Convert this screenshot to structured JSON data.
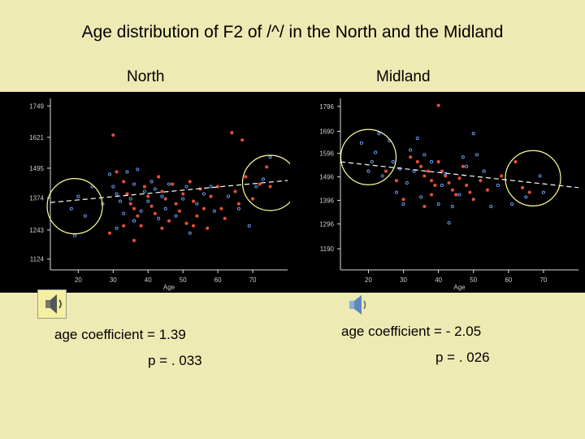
{
  "title": "Age distribution of F2 of /^/ in the North and the Midland",
  "north_label": "North",
  "midland_label": "Midland",
  "north_coefficient": "age  coefficient = 1.39",
  "north_p": "p = . 033",
  "midland_coefficient": "age  coefficient = - 2.05",
  "midland_p": "p =  . 026",
  "colors": {
    "background": "#eeeab3",
    "plot_bg": "#000000",
    "male_points": "#e05038",
    "female_points": "#70a8ff",
    "circle": "#ffff99",
    "trend": "#ffffff"
  },
  "icons": [
    "speaker-icon",
    "speaker-icon"
  ],
  "chart_data": [
    {
      "type": "scatter",
      "title": "North",
      "xlabel": "Age",
      "ylabel": "",
      "xticks": [
        "20",
        "30",
        "40",
        "50",
        "60",
        "70"
      ],
      "yticks": [
        "1124",
        "1243",
        "1374",
        "1495",
        "1621",
        "1749"
      ],
      "xlim": [
        12,
        80
      ],
      "ylim": [
        1080,
        1780
      ],
      "trend": {
        "x": [
          12,
          80
        ],
        "y": [
          1355,
          1445
        ]
      },
      "circles": [
        {
          "x": 19,
          "y": 1340
        },
        {
          "x": 75,
          "y": 1435
        }
      ],
      "series": [
        {
          "color": "male",
          "points": [
            [
              30,
              1630
            ],
            [
              31,
              1480
            ],
            [
              33,
              1440
            ],
            [
              34,
              1390
            ],
            [
              35,
              1350
            ],
            [
              36,
              1330
            ],
            [
              37,
              1300
            ],
            [
              38,
              1260
            ],
            [
              39,
              1420
            ],
            [
              40,
              1380
            ],
            [
              41,
              1340
            ],
            [
              42,
              1310
            ],
            [
              43,
              1460
            ],
            [
              44,
              1400
            ],
            [
              45,
              1370
            ],
            [
              46,
              1280
            ],
            [
              47,
              1430
            ],
            [
              48,
              1350
            ],
            [
              49,
              1320
            ],
            [
              50,
              1390
            ],
            [
              51,
              1270
            ],
            [
              52,
              1440
            ],
            [
              53,
              1360
            ],
            [
              54,
              1300
            ],
            [
              55,
              1410
            ],
            [
              56,
              1330
            ],
            [
              57,
              1250
            ],
            [
              58,
              1380
            ],
            [
              60,
              1420
            ],
            [
              61,
              1330
            ],
            [
              62,
              1290
            ],
            [
              64,
              1640
            ],
            [
              65,
              1400
            ],
            [
              66,
              1350
            ],
            [
              67,
              1610
            ],
            [
              68,
              1460
            ],
            [
              70,
              1370
            ],
            [
              72,
              1430
            ],
            [
              74,
              1500
            ],
            [
              75,
              1420
            ],
            [
              33,
              1260
            ],
            [
              36,
              1200
            ],
            [
              29,
              1230
            ],
            [
              44,
              1250
            ],
            [
              53,
              1260
            ]
          ]
        },
        {
          "color": "female",
          "points": [
            [
              18,
              1330
            ],
            [
              19,
              1220
            ],
            [
              20,
              1380
            ],
            [
              22,
              1300
            ],
            [
              24,
              1420
            ],
            [
              27,
              1350
            ],
            [
              29,
              1470
            ],
            [
              30,
              1420
            ],
            [
              31,
              1390
            ],
            [
              32,
              1360
            ],
            [
              33,
              1310
            ],
            [
              34,
              1480
            ],
            [
              35,
              1370
            ],
            [
              36,
              1430
            ],
            [
              37,
              1490
            ],
            [
              38,
              1320
            ],
            [
              39,
              1400
            ],
            [
              40,
              1360
            ],
            [
              41,
              1440
            ],
            [
              42,
              1410
            ],
            [
              43,
              1290
            ],
            [
              44,
              1380
            ],
            [
              45,
              1330
            ],
            [
              46,
              1430
            ],
            [
              48,
              1300
            ],
            [
              50,
              1370
            ],
            [
              51,
              1420
            ],
            [
              52,
              1230
            ],
            [
              54,
              1350
            ],
            [
              56,
              1390
            ],
            [
              58,
              1420
            ],
            [
              59,
              1320
            ],
            [
              63,
              1380
            ],
            [
              66,
              1330
            ],
            [
              69,
              1260
            ],
            [
              71,
              1420
            ],
            [
              73,
              1450
            ],
            [
              75,
              1540
            ],
            [
              31,
              1250
            ],
            [
              36,
              1280
            ]
          ]
        }
      ]
    },
    {
      "type": "scatter",
      "title": "Midland",
      "xlabel": "Age",
      "ylabel": "",
      "xticks": [
        "20",
        "30",
        "40",
        "50",
        "60",
        "70"
      ],
      "yticks": [
        "1190",
        "1296",
        "1396",
        "1496",
        "1596",
        "1690",
        "1796"
      ],
      "xlim": [
        12,
        80
      ],
      "ylim": [
        1100,
        1830
      ],
      "trend": {
        "x": [
          12,
          80
        ],
        "y": [
          1560,
          1450
        ]
      },
      "circles": [
        {
          "x": 20,
          "y": 1580
        },
        {
          "x": 67,
          "y": 1490
        }
      ],
      "series": [
        {
          "color": "male",
          "points": [
            [
              32,
              1580
            ],
            [
              34,
              1560
            ],
            [
              35,
              1540
            ],
            [
              36,
              1500
            ],
            [
              37,
              1520
            ],
            [
              38,
              1480
            ],
            [
              39,
              1460
            ],
            [
              40,
              1560
            ],
            [
              41,
              1520
            ],
            [
              42,
              1500
            ],
            [
              43,
              1470
            ],
            [
              44,
              1440
            ],
            [
              45,
              1420
            ],
            [
              46,
              1490
            ],
            [
              47,
              1540
            ],
            [
              48,
              1460
            ],
            [
              49,
              1430
            ],
            [
              50,
              1400
            ],
            [
              52,
              1480
            ],
            [
              54,
              1440
            ],
            [
              58,
              1500
            ],
            [
              62,
              1560
            ],
            [
              64,
              1450
            ],
            [
              66,
              1430
            ],
            [
              40,
              1800
            ],
            [
              36,
              1370
            ],
            [
              38,
              1420
            ],
            [
              25,
              1520
            ],
            [
              28,
              1480
            ],
            [
              30,
              1400
            ]
          ]
        },
        {
          "color": "female",
          "points": [
            [
              18,
              1640
            ],
            [
              20,
              1520
            ],
            [
              21,
              1560
            ],
            [
              22,
              1600
            ],
            [
              23,
              1680
            ],
            [
              24,
              1500
            ],
            [
              26,
              1650
            ],
            [
              27,
              1560
            ],
            [
              28,
              1430
            ],
            [
              29,
              1530
            ],
            [
              30,
              1380
            ],
            [
              31,
              1470
            ],
            [
              32,
              1610
            ],
            [
              33,
              1520
            ],
            [
              35,
              1410
            ],
            [
              36,
              1590
            ],
            [
              38,
              1560
            ],
            [
              40,
              1380
            ],
            [
              41,
              1460
            ],
            [
              42,
              1510
            ],
            [
              44,
              1370
            ],
            [
              46,
              1420
            ],
            [
              47,
              1580
            ],
            [
              48,
              1540
            ],
            [
              50,
              1680
            ],
            [
              51,
              1590
            ],
            [
              53,
              1520
            ],
            [
              55,
              1370
            ],
            [
              57,
              1460
            ],
            [
              61,
              1380
            ],
            [
              65,
              1410
            ],
            [
              69,
              1500
            ],
            [
              70,
              1430
            ],
            [
              43,
              1300
            ],
            [
              34,
              1660
            ]
          ]
        }
      ]
    }
  ]
}
